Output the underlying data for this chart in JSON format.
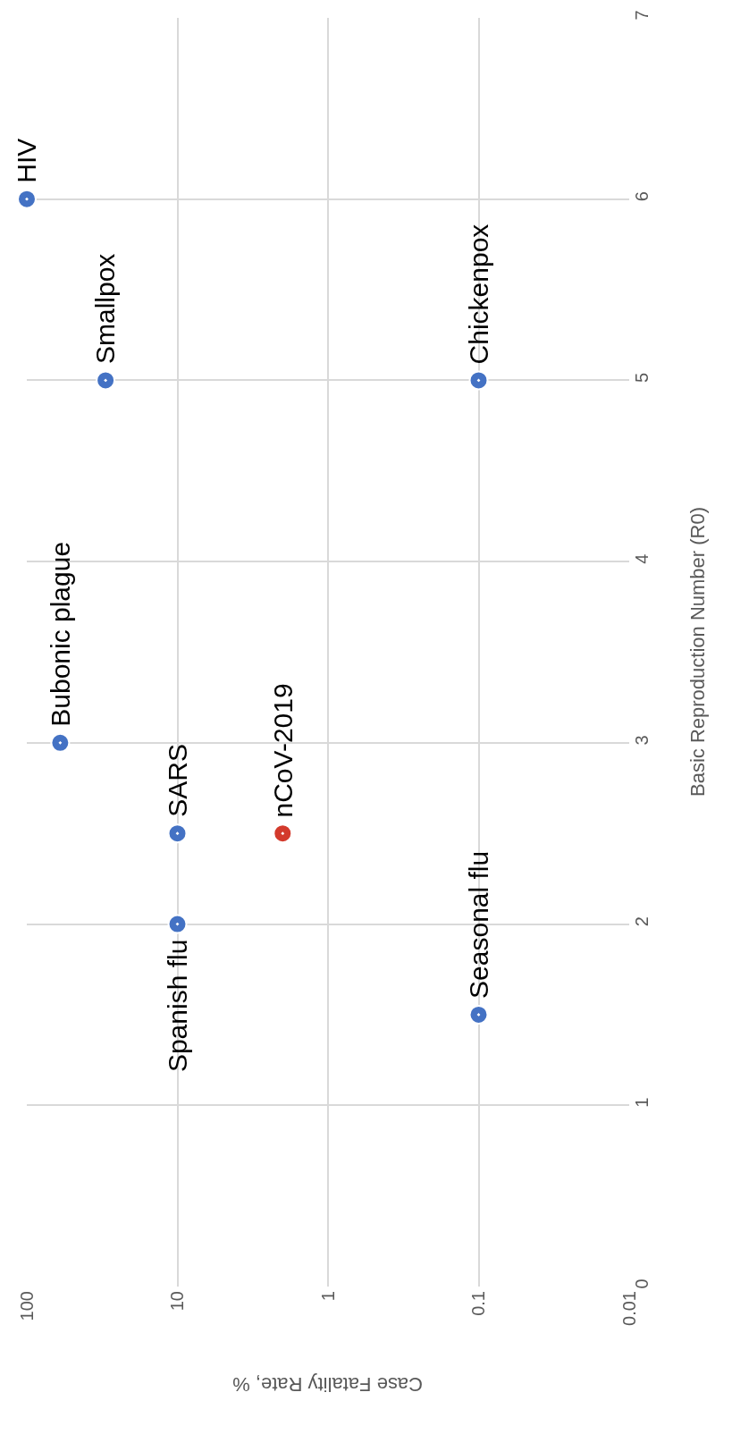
{
  "chart_data": {
    "type": "scatter",
    "xlabel": "Case Fatality Rate, %",
    "ylabel": "Basic Reproduction Number (R0)",
    "x": [
      100,
      30,
      0.1,
      60,
      10,
      2,
      10,
      0.1
    ],
    "series": [
      {
        "values": [
          6,
          5,
          5,
          3,
          2.5,
          2.5,
          2,
          1.5
        ],
        "colors": [
          "#4472c4",
          "#4472c4",
          "#4472c4",
          "#4472c4",
          "#4472c4",
          "#d33a2c",
          "#4472c4",
          "#4472c4"
        ]
      }
    ],
    "annotations": [
      {
        "text": "HIV",
        "x": 100,
        "y": 6
      },
      {
        "text": "Smallpox",
        "x": 30,
        "y": 5
      },
      {
        "text": "Chickenpox",
        "x": 0.1,
        "y": 5
      },
      {
        "text": "Bubonic plague",
        "x": 60,
        "y": 3
      },
      {
        "text": "SARS",
        "x": 10,
        "y": 2.5
      },
      {
        "text": "nCoV-2019",
        "x": 2,
        "y": 2.5
      },
      {
        "text": "Spanish flu",
        "x": 10,
        "y": 2
      },
      {
        "text": "Seasonal flu",
        "x": 0.1,
        "y": 1.5
      }
    ],
    "xlim": [
      100,
      0.01
    ],
    "xticks": [
      100,
      10,
      1,
      0.1,
      0.01
    ],
    "ylim": [
      0,
      7
    ],
    "yticks": [
      0,
      1,
      2,
      3,
      4,
      5,
      6,
      7
    ],
    "log": "x",
    "grid": true,
    "marker": "circle"
  }
}
